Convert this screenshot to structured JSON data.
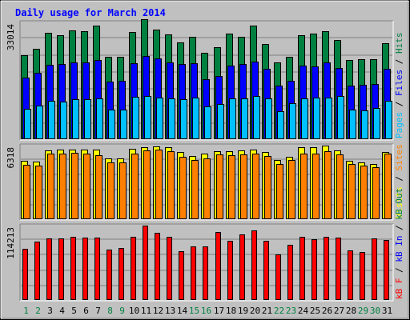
{
  "title": "Daily usage for March 2014",
  "colors": {
    "background": "#c0c0c0",
    "plot_bg": "#c0c0c0",
    "title": "#0000ff",
    "grid": "#808080",
    "hits": "#008040",
    "files": "#0000ff",
    "pages": "#00c0ff",
    "visits": "#ffff00",
    "sites": "#ff8000",
    "kb_in": "#0000ff",
    "kb_out": "#008040",
    "kb_f": "#ff0000",
    "weekday_label": "#000000",
    "weekend_label": "#008040"
  },
  "chart_data": [
    {
      "type": "bar",
      "panel": "top",
      "ymax_label": "33014",
      "ymax": 33014,
      "legend": [
        "Pages",
        "/",
        "Files",
        "/",
        "Hits"
      ],
      "categories": [
        "1",
        "2",
        "3",
        "4",
        "5",
        "6",
        "7",
        "8",
        "9",
        "10",
        "11",
        "12",
        "13",
        "14",
        "15",
        "16",
        "17",
        "18",
        "19",
        "20",
        "21",
        "22",
        "23",
        "24",
        "25",
        "26",
        "27",
        "28",
        "29",
        "30",
        "31"
      ],
      "weekend_days": [
        "1",
        "2",
        "8",
        "9",
        "15",
        "16",
        "22",
        "23",
        "29",
        "30"
      ],
      "series": [
        {
          "name": "Hits",
          "values": [
            23800,
            25500,
            30000,
            29400,
            30700,
            30500,
            32000,
            23200,
            23300,
            30400,
            34000,
            30900,
            29600,
            27400,
            29000,
            24500,
            25900,
            29800,
            28900,
            32100,
            26900,
            21800,
            23200,
            29300,
            29800,
            30500,
            28100,
            22300,
            22600,
            22600,
            27100
          ]
        },
        {
          "name": "Files",
          "values": [
            17300,
            18800,
            21100,
            21300,
            21800,
            21800,
            22300,
            16200,
            16400,
            21500,
            23500,
            22800,
            21700,
            21200,
            21400,
            17000,
            17800,
            20700,
            21200,
            21900,
            19800,
            15200,
            16500,
            20800,
            20600,
            21600,
            20200,
            15200,
            15400,
            15600,
            19800
          ]
        },
        {
          "name": "Pages",
          "values": [
            8500,
            9400,
            10900,
            10700,
            11400,
            11400,
            11600,
            8400,
            8400,
            12000,
            12200,
            11800,
            11500,
            11300,
            11800,
            9200,
            9900,
            11600,
            11500,
            12200,
            11600,
            7900,
            10100,
            11600,
            11700,
            11800,
            12300,
            8300,
            8200,
            8800,
            10900
          ]
        }
      ]
    },
    {
      "type": "bar",
      "panel": "middle",
      "ymax_label": "6318",
      "ymax": 6318,
      "legend": [
        "Visits",
        "/",
        "Sites"
      ],
      "categories": [
        "1",
        "2",
        "3",
        "4",
        "5",
        "6",
        "7",
        "8",
        "9",
        "10",
        "11",
        "12",
        "13",
        "14",
        "15",
        "16",
        "17",
        "18",
        "19",
        "20",
        "21",
        "22",
        "23",
        "24",
        "25",
        "26",
        "27",
        "28",
        "29",
        "30",
        "31"
      ],
      "series": [
        {
          "name": "Visits",
          "values": [
            5000,
            4950,
            5900,
            5950,
            6000,
            5950,
            6000,
            5200,
            5250,
            6050,
            6200,
            6280,
            6150,
            5800,
            5400,
            5600,
            5850,
            5850,
            5900,
            5950,
            5800,
            5100,
            5350,
            6200,
            6150,
            6350,
            5900,
            5000,
            4900,
            4750,
            5800
          ]
        },
        {
          "name": "Sites",
          "values": [
            4700,
            4600,
            5600,
            5650,
            5700,
            5650,
            5500,
            4900,
            4850,
            5600,
            5900,
            5950,
            5850,
            5350,
            5050,
            5200,
            5550,
            5500,
            5550,
            5600,
            5450,
            4750,
            5050,
            5650,
            5650,
            5850,
            5550,
            4750,
            4600,
            4450,
            5650
          ]
        }
      ]
    },
    {
      "type": "bar",
      "panel": "bottom",
      "ymax_label": "114213",
      "ymax": 114213,
      "legend": [
        "kB F",
        "/",
        "kB In",
        "/",
        "kB Out"
      ],
      "categories": [
        "1",
        "2",
        "3",
        "4",
        "5",
        "6",
        "7",
        "8",
        "9",
        "10",
        "11",
        "12",
        "13",
        "14",
        "15",
        "16",
        "17",
        "18",
        "19",
        "20",
        "21",
        "22",
        "23",
        "24",
        "25",
        "26",
        "27",
        "28",
        "29",
        "30",
        "31"
      ],
      "series": [
        {
          "name": "kB F",
          "values": [
            78800,
            89800,
            95000,
            94000,
            97300,
            95600,
            95400,
            77200,
            80000,
            97300,
            114000,
            103300,
            97200,
            75200,
            82000,
            82000,
            104300,
            91400,
            101300,
            106800,
            90400,
            70600,
            84700,
            96800,
            93500,
            96500,
            95300,
            76400,
            74000,
            94000,
            92200
          ]
        }
      ]
    }
  ],
  "x_axis_labels": [
    "1",
    "2",
    "3",
    "4",
    "5",
    "6",
    "7",
    "8",
    "9",
    "10",
    "11",
    "12",
    "13",
    "14",
    "15",
    "16",
    "17",
    "18",
    "19",
    "20",
    "21",
    "22",
    "23",
    "24",
    "25",
    "26",
    "27",
    "28",
    "29",
    "30",
    "31"
  ]
}
